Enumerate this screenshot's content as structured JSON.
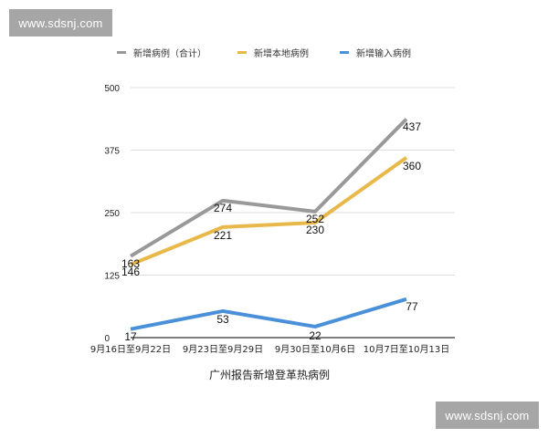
{
  "watermarks": {
    "top_left": "www.sdsnj.com",
    "bottom_right": "www.sdsnj.com"
  },
  "legend": [
    {
      "label": "新增病例（合计）",
      "color": "#999999"
    },
    {
      "label": "新增本地病例",
      "color": "#e8b84a"
    },
    {
      "label": "新增输入病例",
      "color": "#4a90d9"
    }
  ],
  "chart_data": {
    "type": "line",
    "title": "广州报告新增登革热病例",
    "xlabel": "",
    "ylabel": "",
    "categories": [
      "9月16日至9月22日",
      "9月23日至9月29日",
      "9月30日至10月6日",
      "10月7日至10月13日"
    ],
    "series": [
      {
        "name": "新增病例（合计）",
        "color": "#999999",
        "values": [
          163,
          274,
          252,
          437
        ]
      },
      {
        "name": "新增本地病例",
        "color": "#e8b84a",
        "values": [
          146,
          221,
          230,
          360
        ]
      },
      {
        "name": "新增输入病例",
        "color": "#4a90d9",
        "values": [
          17,
          53,
          22,
          77
        ]
      }
    ],
    "yticks": [
      0,
      125,
      250,
      375,
      500
    ],
    "ylim": [
      0,
      500
    ],
    "grid": true,
    "legend_position": "top"
  }
}
